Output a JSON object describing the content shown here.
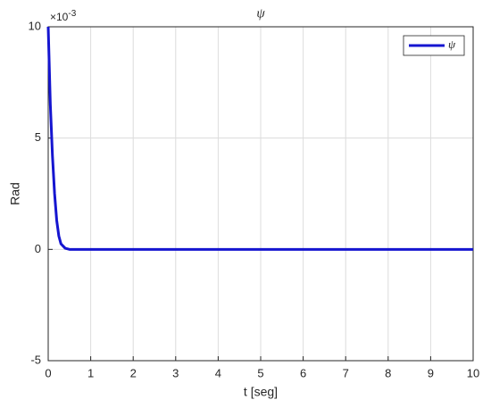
{
  "chart_data": {
    "type": "line",
    "title": "ψ",
    "x_label": "t [seg]",
    "y_label": "Rad",
    "exponent_label": {
      "base": "×10",
      "power": "-3"
    },
    "x": [
      0,
      0.05,
      0.1,
      0.15,
      0.2,
      0.25,
      0.3,
      0.4,
      0.5,
      1,
      2,
      3,
      4,
      5,
      6,
      7,
      8,
      9,
      10
    ],
    "series": [
      {
        "name": "ψ",
        "color": "#1515d0",
        "values": [
          10,
          6.5,
          4.2,
          2.5,
          1.3,
          0.6,
          0.25,
          0.05,
          0,
          0,
          0,
          0,
          0,
          0,
          0,
          0,
          0,
          0,
          0
        ]
      }
    ],
    "xlim": [
      0,
      10
    ],
    "xticks": [
      0,
      1,
      2,
      3,
      4,
      5,
      6,
      7,
      8,
      9,
      10
    ],
    "ylim": [
      -5,
      10
    ],
    "yticks": [
      -5,
      0,
      5,
      10
    ],
    "grid": true,
    "legend": "top-right"
  }
}
